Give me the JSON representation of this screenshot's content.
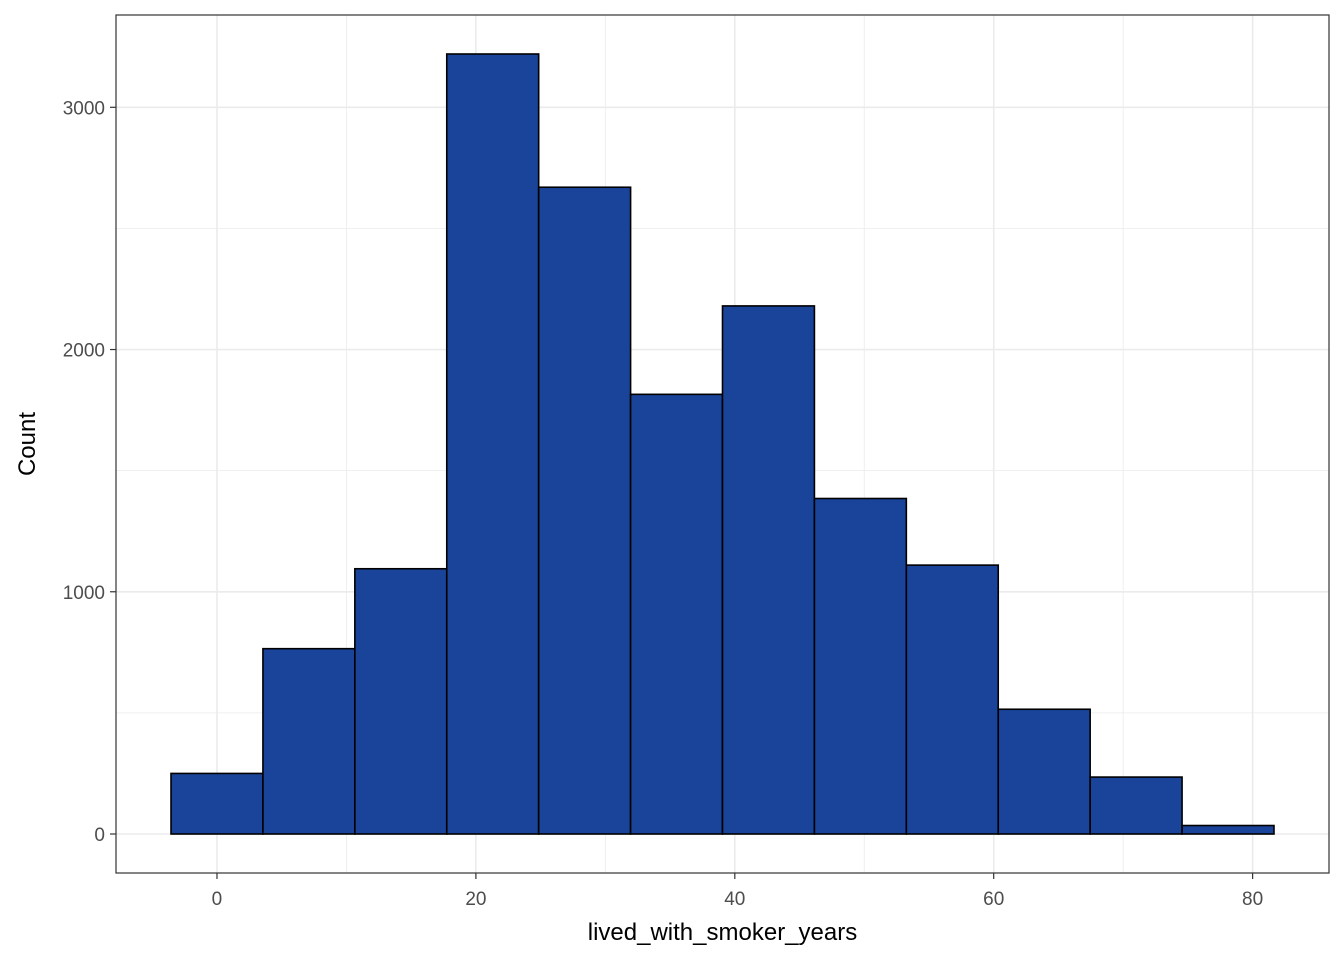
{
  "chart_data": {
    "type": "bar",
    "title": "",
    "xlabel": "lived_with_smoker_years",
    "ylabel": "Count",
    "bins": [
      {
        "x_start": -3.55,
        "x_end": 3.55,
        "count": 250
      },
      {
        "x_start": 3.55,
        "x_end": 10.65,
        "count": 765
      },
      {
        "x_start": 10.65,
        "x_end": 17.75,
        "count": 1095
      },
      {
        "x_start": 17.75,
        "x_end": 24.85,
        "count": 3220
      },
      {
        "x_start": 24.85,
        "x_end": 31.95,
        "count": 2670
      },
      {
        "x_start": 31.95,
        "x_end": 39.05,
        "count": 1815
      },
      {
        "x_start": 39.05,
        "x_end": 46.15,
        "count": 2180
      },
      {
        "x_start": 46.15,
        "x_end": 53.25,
        "count": 1385
      },
      {
        "x_start": 53.25,
        "x_end": 60.35,
        "count": 1110
      },
      {
        "x_start": 60.35,
        "x_end": 67.45,
        "count": 515
      },
      {
        "x_start": 67.45,
        "x_end": 74.55,
        "count": 235
      },
      {
        "x_start": 74.55,
        "x_end": 81.65,
        "count": 35
      }
    ],
    "x_ticks": [
      0,
      20,
      40,
      60,
      80
    ],
    "x_tick_labels": [
      "0",
      "20",
      "40",
      "60",
      "80"
    ],
    "y_ticks": [
      0,
      1000,
      2000,
      3000
    ],
    "y_tick_labels": [
      "0",
      "1000",
      "2000",
      "3000"
    ],
    "xlim": [
      -7.8,
      85.9
    ],
    "ylim": [
      -161,
      3381
    ],
    "grid": true,
    "legend": "none",
    "colors": {
      "bar_fill": "#1a4499",
      "bar_stroke": "#000000",
      "grid": "#ebebeb",
      "panel_border": "#333333",
      "tick_label": "#4d4d4d"
    }
  }
}
